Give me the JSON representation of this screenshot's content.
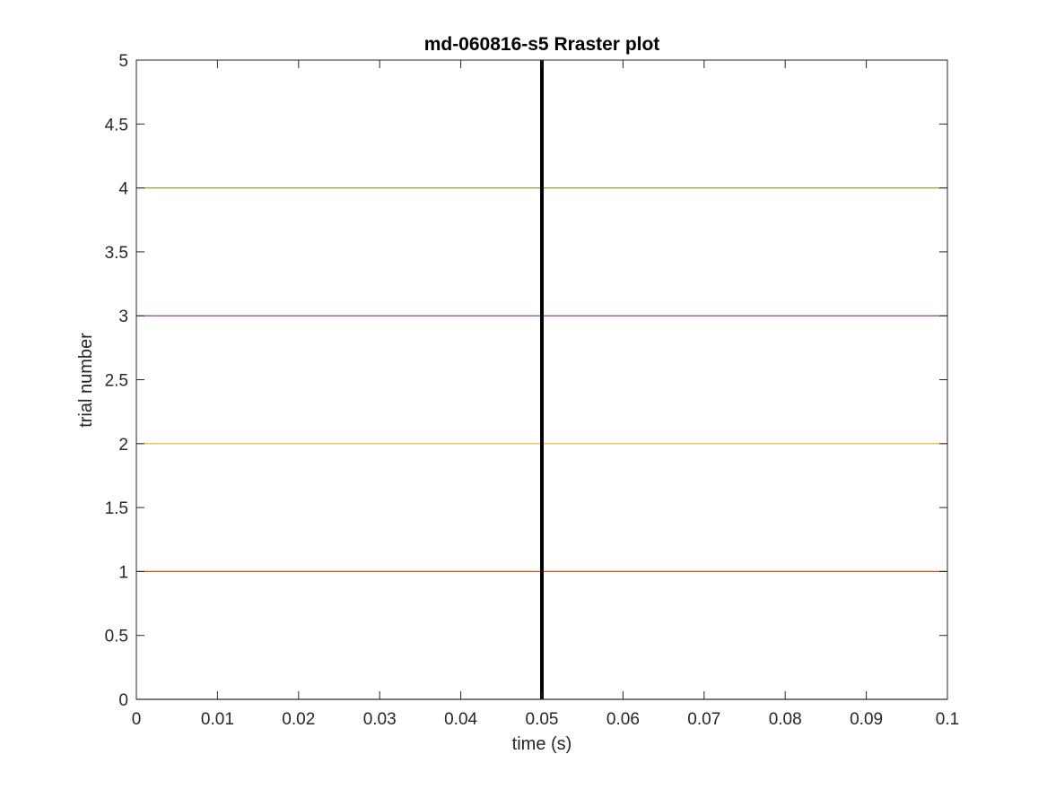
{
  "chart_data": {
    "type": "line",
    "title": "md-060816-s5 Rraster plot",
    "xlabel": "time (s)",
    "ylabel": "trial number",
    "xlim": [
      0,
      0.1
    ],
    "ylim": [
      0,
      5
    ],
    "xticks": [
      "0",
      "0.01",
      "0.02",
      "0.03",
      "0.04",
      "0.05",
      "0.06",
      "0.07",
      "0.08",
      "0.09",
      "0.1"
    ],
    "yticks": [
      "0",
      "0.5",
      "1",
      "1.5",
      "2",
      "2.5",
      "3",
      "3.5",
      "4",
      "4.5",
      "5"
    ],
    "grid": false,
    "box": true,
    "series": [
      {
        "x": [
          0,
          0.1
        ],
        "y": [
          0,
          0
        ],
        "color": "#0072BD"
      },
      {
        "x": [
          0,
          0.1
        ],
        "y": [
          1,
          1
        ],
        "color": "#D95319"
      },
      {
        "x": [
          0,
          0.1
        ],
        "y": [
          2,
          2
        ],
        "color": "#EDB120"
      },
      {
        "x": [
          0,
          0.1
        ],
        "y": [
          3,
          3
        ],
        "color": "#7E2F8E"
      },
      {
        "x": [
          0,
          0.1
        ],
        "y": [
          4,
          4
        ],
        "color": "#77AC30"
      }
    ],
    "vline": {
      "x": 0.05,
      "color": "#000000"
    }
  }
}
